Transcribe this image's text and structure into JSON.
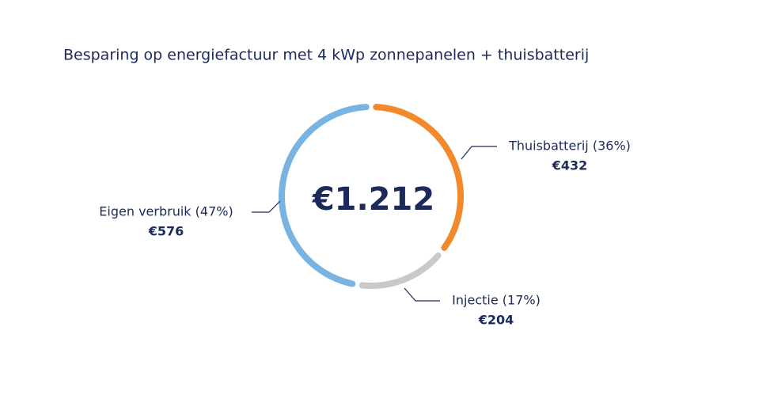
{
  "chart_data": {
    "type": "pie",
    "donut": true,
    "title": "Besparing op energiefactuur met 4 kWp zonnepanelen + thuisbatterij",
    "center_text": "€1.212",
    "categories": [
      "Thuisbatterij (36%)",
      "Injectie (17%)",
      "Eigen verbruik (47%)"
    ],
    "values": [
      432,
      204,
      576
    ],
    "value_labels": [
      "€432",
      "€204",
      "€576"
    ],
    "colors": [
      "#f08a2c",
      "#c9c9c9",
      "#79b3e1"
    ]
  }
}
